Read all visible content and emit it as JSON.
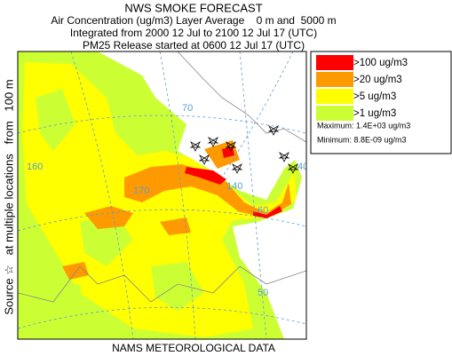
{
  "header": {
    "title": "NWS SMOKE FORECAST",
    "lines": [
      "Air Concentration (ug/m3) Layer Average    0 m and  5000 m",
      "Integrated from 2000 12 Jul to 2100 12 Jul 17 (UTC)",
      "PM25 Release started at 0600 12 Jul 17 (UTC)"
    ]
  },
  "legend": {
    "items": [
      {
        "label": ">100 ug/m3",
        "color": "#ff0000"
      },
      {
        "label": ">20 ug/m3",
        "color": "#ff9900"
      },
      {
        "label": ">5 ug/m3",
        "color": "#ffff00"
      },
      {
        "label": ">1 ug/m3",
        "color": "#ccff33"
      }
    ],
    "maximum": "Maximum: 1.4E+03 ug/m3",
    "minimum": "Minimum: 8.8E-09 ug/m3"
  },
  "source_label": "Source ☆   at multiple locations   from   100 m",
  "map": {
    "grid_labels": [
      "170",
      "140",
      "70",
      "160",
      "60",
      "50",
      "40"
    ]
  },
  "footer": "NAMS METEOROLOGICAL DATA"
}
